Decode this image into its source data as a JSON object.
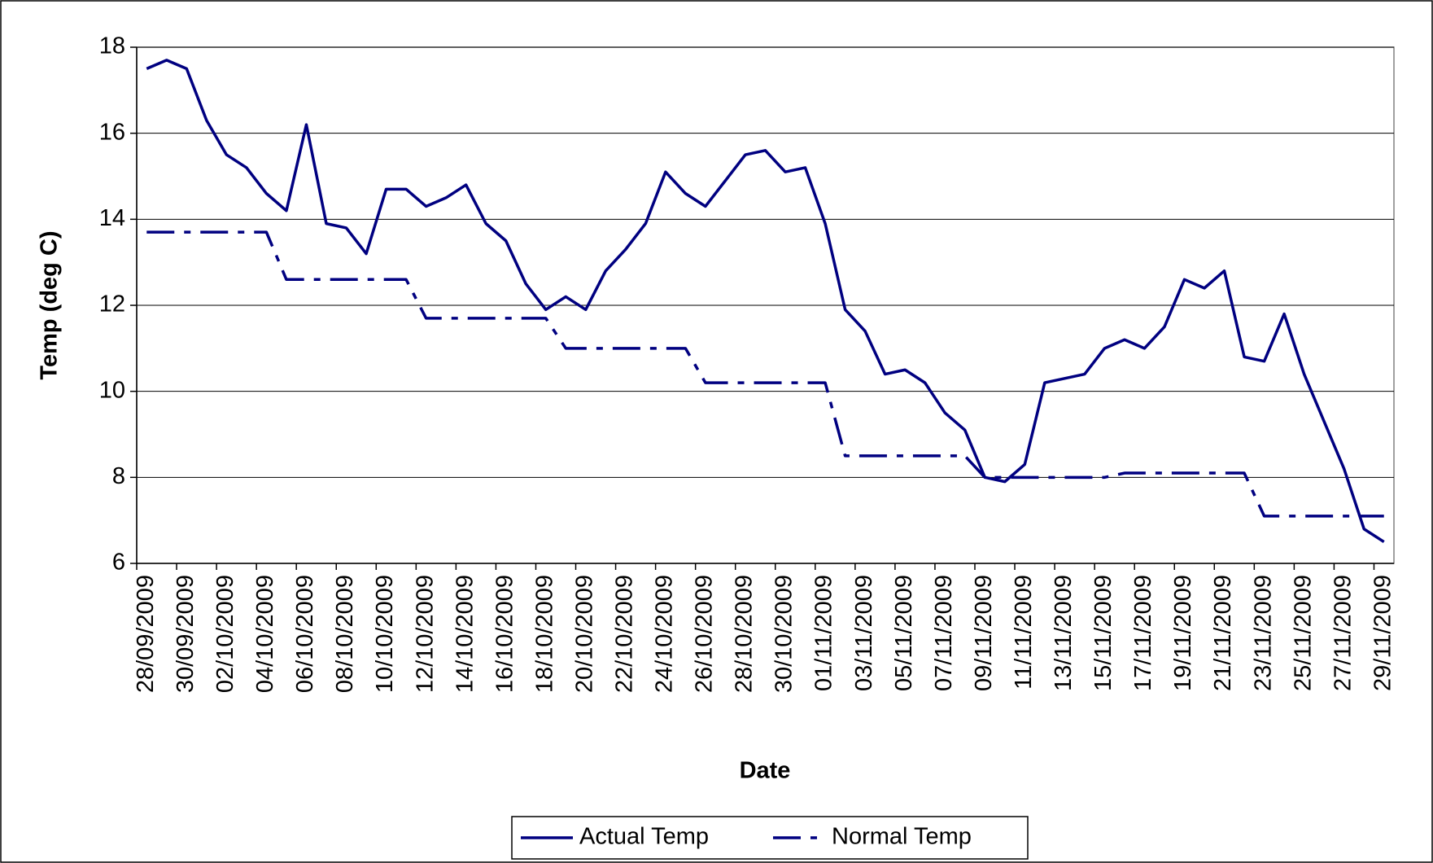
{
  "chart_data": {
    "type": "line",
    "xlabel": "Date",
    "ylabel": "Temp (deg C)",
    "categories": [
      "28/09/2009",
      null,
      "30/09/2009",
      null,
      "02/10/2009",
      null,
      "04/10/2009",
      null,
      "06/10/2009",
      null,
      "08/10/2009",
      null,
      "10/10/2009",
      null,
      "12/10/2009",
      null,
      "14/10/2009",
      null,
      "16/10/2009",
      null,
      "18/10/2009",
      null,
      "20/10/2009",
      null,
      "22/10/2009",
      null,
      "24/10/2009",
      null,
      "26/10/2009",
      null,
      "28/10/2009",
      null,
      "30/10/2009",
      null,
      "01/11/2009",
      null,
      "03/11/2009",
      null,
      "05/11/2009",
      null,
      "07/11/2009",
      null,
      "09/11/2009",
      null,
      "11/11/2009",
      null,
      "13/11/2009",
      null,
      "15/11/2009",
      null,
      "17/11/2009",
      null,
      "19/11/2009",
      null,
      "21/11/2009",
      null,
      "23/11/2009",
      null,
      "25/11/2009",
      null,
      "27/11/2009",
      null,
      "29/11/2009"
    ],
    "series": [
      {
        "name": "Actual Temp",
        "color": "#000080",
        "dash": "solid",
        "values": [
          17.5,
          17.7,
          17.5,
          16.3,
          15.5,
          15.2,
          14.6,
          14.2,
          16.2,
          13.9,
          13.8,
          13.2,
          14.7,
          14.7,
          14.3,
          14.5,
          14.8,
          13.9,
          13.5,
          12.5,
          11.9,
          12.2,
          11.9,
          12.8,
          13.3,
          13.9,
          15.1,
          14.6,
          14.3,
          14.9,
          15.5,
          15.6,
          15.1,
          15.2,
          13.9,
          11.9,
          11.4,
          10.4,
          10.5,
          10.2,
          9.5,
          9.1,
          8.0,
          7.9,
          8.3,
          10.2,
          10.3,
          10.4,
          11.0,
          11.2,
          11.0,
          11.5,
          12.6,
          12.4,
          12.8,
          10.8,
          10.7,
          11.8,
          10.4,
          9.3,
          8.2,
          6.8,
          6.5
        ]
      },
      {
        "name": "Normal Temp",
        "color": "#000080",
        "dash": "dash-dot",
        "values": [
          13.7,
          13.7,
          13.7,
          13.7,
          13.7,
          13.7,
          13.7,
          12.6,
          12.6,
          12.6,
          12.6,
          12.6,
          12.6,
          12.6,
          11.7,
          11.7,
          11.7,
          11.7,
          11.7,
          11.7,
          11.7,
          11.0,
          11.0,
          11.0,
          11.0,
          11.0,
          11.0,
          11.0,
          10.2,
          10.2,
          10.2,
          10.2,
          10.2,
          10.2,
          10.2,
          8.5,
          8.5,
          8.5,
          8.5,
          8.5,
          8.5,
          8.5,
          8.0,
          8.0,
          8.0,
          8.0,
          8.0,
          8.0,
          8.0,
          8.1,
          8.1,
          8.1,
          8.1,
          8.1,
          8.1,
          8.1,
          7.1,
          7.1,
          7.1,
          7.1,
          7.1,
          7.1,
          7.1
        ]
      }
    ],
    "ylim": [
      6,
      18
    ],
    "yticks": [
      6,
      8,
      10,
      12,
      14,
      16,
      18
    ],
    "grid": true,
    "legend": "bottom"
  }
}
